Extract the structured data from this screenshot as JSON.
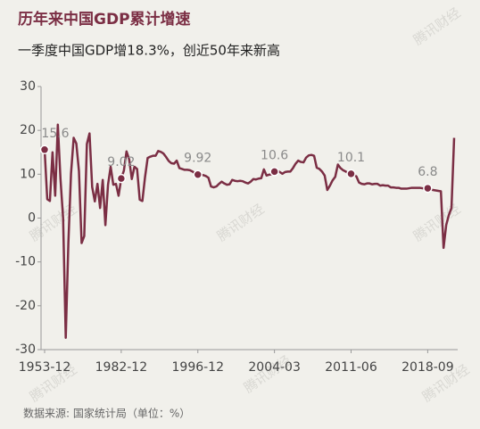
{
  "chart_data": {
    "type": "line",
    "title": "历年来中国GDP累计增速",
    "subtitle": "一季度中国GDP增18.3%，创近50年来新高",
    "source": "数据来源: 国家统计局（单位：%）",
    "watermark": "腾讯财经",
    "color": "#7b2e44",
    "categories": [
      "1953-12",
      null,
      null,
      null,
      null,
      null,
      null,
      null,
      null,
      null,
      null,
      null,
      null,
      null,
      null,
      null,
      null,
      null,
      null,
      null,
      null,
      null,
      null,
      null,
      null,
      null,
      null,
      null,
      null,
      "1982-12",
      null,
      null,
      null,
      null,
      null,
      null,
      null,
      null,
      null,
      null,
      null,
      null,
      null,
      null,
      null,
      null,
      null,
      null,
      null,
      null,
      null,
      null,
      null,
      null,
      null,
      null,
      null,
      null,
      "1996-12",
      null,
      null,
      null,
      null,
      null,
      null,
      null,
      null,
      null,
      null,
      null,
      null,
      null,
      null,
      null,
      null,
      null,
      null,
      null,
      null,
      null,
      null,
      null,
      null,
      null,
      null,
      null,
      null,
      "2004-03",
      null,
      null,
      null,
      null,
      null,
      null,
      null,
      null,
      null,
      null,
      null,
      null,
      null,
      null,
      null,
      null,
      null,
      null,
      null,
      null,
      null,
      null,
      null,
      null,
      null,
      null,
      null,
      null,
      "2011-06",
      null,
      null,
      null,
      null,
      null,
      null,
      null,
      null,
      null,
      null,
      null,
      null,
      null,
      null,
      null,
      null,
      null,
      null,
      null,
      null,
      null,
      null,
      null,
      null,
      null,
      null,
      null,
      null,
      "2018-09",
      null,
      null,
      null,
      null,
      null,
      null,
      null,
      null,
      null,
      null
    ],
    "values": [
      15.6,
      4.3,
      3.9,
      15.0,
      5.1,
      21.3,
      9.0,
      0.0,
      -27.3,
      -5.6,
      10.2,
      18.3,
      17.0,
      10.7,
      -5.7,
      -4.1,
      16.9,
      19.3,
      7.1,
      3.8,
      7.8,
      2.3,
      8.7,
      -1.6,
      7.6,
      11.7,
      7.6,
      7.8,
      5.1,
      9.02,
      10.8,
      15.2,
      13.4,
      8.9,
      11.7,
      11.2,
      4.2,
      3.9,
      9.3,
      13.7,
      14.0,
      14.2,
      14.2,
      15.3,
      15.1,
      14.7,
      13.9,
      13.0,
      12.5,
      12.4,
      13.1,
      11.4,
      11.2,
      11.0,
      11.0,
      10.9,
      10.6,
      10.2,
      9.92,
      9.9,
      9.8,
      9.6,
      9.2,
      7.2,
      7.0,
      7.2,
      7.8,
      8.3,
      7.9,
      7.6,
      7.7,
      8.7,
      8.5,
      8.4,
      8.5,
      8.4,
      8.1,
      7.9,
      8.3,
      8.9,
      8.8,
      9.0,
      9.1,
      11.1,
      9.7,
      9.9,
      10.0,
      10.6,
      10.9,
      10.5,
      10.1,
      10.5,
      10.6,
      10.6,
      11.4,
      12.4,
      13.1,
      12.8,
      12.7,
      13.8,
      14.3,
      14.4,
      14.2,
      11.5,
      11.2,
      10.6,
      9.7,
      6.4,
      7.4,
      8.6,
      9.4,
      12.2,
      11.4,
      10.9,
      10.6,
      10.2,
      10.1,
      9.9,
      9.5,
      8.1,
      7.8,
      7.7,
      7.9,
      7.9,
      7.7,
      7.8,
      7.8,
      7.4,
      7.5,
      7.4,
      7.4,
      7.0,
      7.0,
      6.9,
      6.9,
      6.7,
      6.7,
      6.7,
      6.8,
      6.9,
      6.9,
      6.9,
      6.9,
      6.8,
      6.8,
      6.8,
      6.6,
      6.4,
      6.3,
      6.2,
      6.1,
      -6.8,
      -1.6,
      0.7,
      2.3,
      18.3
    ],
    "value_labels": [
      "15.6",
      null,
      null,
      null,
      null,
      null,
      null,
      null,
      null,
      null,
      null,
      null,
      null,
      null,
      null,
      null,
      null,
      null,
      null,
      null,
      null,
      null,
      null,
      null,
      null,
      null,
      null,
      null,
      null,
      "9.02",
      null,
      null,
      null,
      null,
      null,
      null,
      null,
      null,
      null,
      null,
      null,
      null,
      null,
      null,
      null,
      null,
      null,
      null,
      null,
      null,
      null,
      null,
      null,
      null,
      null,
      null,
      null,
      null,
      "9.92",
      null,
      null,
      null,
      null,
      null,
      null,
      null,
      null,
      null,
      null,
      null,
      null,
      null,
      null,
      null,
      null,
      null,
      null,
      null,
      null,
      null,
      null,
      null,
      null,
      null,
      null,
      null,
      null,
      "10.6",
      null,
      null,
      null,
      null,
      null,
      null,
      null,
      null,
      null,
      null,
      null,
      null,
      null,
      null,
      null,
      null,
      null,
      null,
      null,
      null,
      null,
      null,
      null,
      null,
      null,
      null,
      null,
      null,
      "10.1",
      null,
      null,
      null,
      null,
      null,
      null,
      null,
      null,
      null,
      null,
      null,
      null,
      null,
      null,
      null,
      null,
      null,
      null,
      null,
      null,
      null,
      null,
      null,
      null,
      null,
      null,
      null,
      null,
      "6.8",
      null,
      null,
      null,
      null,
      null,
      null,
      null,
      null,
      null,
      null
    ],
    "ylim": [
      -30,
      30
    ],
    "yticks": [
      -30,
      -20,
      -10,
      0,
      10,
      20,
      30
    ],
    "grid": false
  }
}
